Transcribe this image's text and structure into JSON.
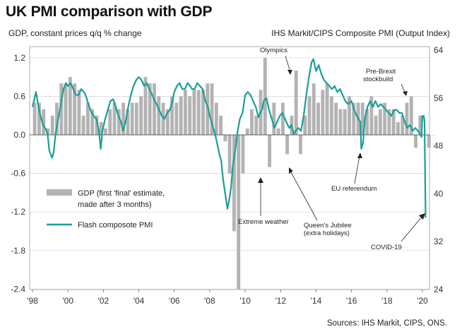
{
  "chart_data": {
    "type": "bar+line",
    "title": "UK PMI comparison with GDP",
    "ylabel_left": "GDP, constant prices q/q % change",
    "ylabel_right": "IHS Markit/CIPS Composite PMI (Output Index)",
    "source": "Sources: IHS Markit, CIPS, ONS.",
    "x_range": [
      1998,
      2020.4
    ],
    "x_ticks": [
      1998,
      2000,
      2002,
      2004,
      2006,
      2008,
      2010,
      2012,
      2014,
      2016,
      2018,
      2020
    ],
    "x_tick_labels": [
      "'98",
      "'00",
      "'02",
      "'04",
      "'06",
      "'08",
      "'10",
      "'12",
      "'14",
      "'16",
      "'18",
      "'20"
    ],
    "ylim_left": [
      -2.4,
      1.5
    ],
    "yticks_left": [
      -2.4,
      -1.8,
      -1.2,
      -0.6,
      0.0,
      0.6,
      1.2
    ],
    "ytick_labels_left": [
      "-2.4",
      "-1.8",
      "-1.2",
      "-0.6",
      "0.0",
      "0.6",
      "1.2"
    ],
    "ylim_right": [
      24,
      66
    ],
    "yticks_right": [
      24,
      32,
      40,
      48,
      56,
      64
    ],
    "ytick_labels_right": [
      "24",
      "32",
      "40",
      "48",
      "56",
      "64"
    ],
    "gdp_bar_color": "#b3b3b3",
    "pmi_line_color": "#1a9e96",
    "legend": {
      "gdp_label_line1": "GDP (first 'final' estimate,",
      "gdp_label_line2": "made after 3 months)",
      "pmi_label": "Flash composote PMI"
    },
    "gdp_series": {
      "name": "GDP (first 'final' estimate, made after 3 months)",
      "start": 1998.0,
      "step": 0.25,
      "values": [
        0.5,
        0.5,
        0.4,
        0.1,
        0.3,
        0.5,
        0.8,
        0.8,
        0.9,
        0.8,
        0.7,
        0.3,
        0.5,
        0.4,
        0.3,
        0.2,
        0.1,
        0.4,
        0.5,
        0.4,
        0.5,
        0.4,
        0.5,
        0.5,
        0.6,
        0.9,
        0.8,
        0.8,
        0.6,
        0.5,
        0.4,
        0.6,
        0.5,
        0.6,
        0.7,
        0.6,
        0.7,
        0.7,
        0.7,
        0.8,
        0.8,
        0.5,
        0.3,
        -0.1,
        -0.6,
        -1.5,
        -2.4,
        -0.6,
        0.1,
        0.4,
        0.3,
        0.7,
        1.2,
        -0.5,
        0.5,
        0.1,
        0.5,
        -0.3,
        0.3,
        1.0,
        -0.3,
        0.3,
        0.6,
        0.8,
        0.5,
        0.7,
        0.8,
        0.6,
        0.5,
        0.4,
        0.4,
        0.6,
        0.5,
        0.5,
        0.5,
        0.4,
        0.6,
        0.3,
        0.4,
        0.5,
        0.4,
        0.4,
        0.2,
        0.3,
        0.5,
        0.6,
        -0.2,
        0.3,
        0.0,
        -0.2,
        0.0
      ]
    },
    "pmi_series": {
      "name": "Flash composote PMI",
      "points": [
        [
          1998.0,
          54.5
        ],
        [
          1998.1,
          55.8
        ],
        [
          1998.2,
          57.0
        ],
        [
          1998.3,
          55.2
        ],
        [
          1998.45,
          53.0
        ],
        [
          1998.6,
          51.5
        ],
        [
          1998.75,
          50.8
        ],
        [
          1998.85,
          50.0
        ],
        [
          1998.95,
          47.2
        ],
        [
          1999.1,
          46.0
        ],
        [
          1999.2,
          47.0
        ],
        [
          1999.3,
          50.0
        ],
        [
          1999.45,
          52.5
        ],
        [
          1999.6,
          55.0
        ],
        [
          1999.75,
          57.5
        ],
        [
          1999.9,
          58.5
        ],
        [
          2000.0,
          58.0
        ],
        [
          2000.15,
          58.5
        ],
        [
          2000.3,
          57.5
        ],
        [
          2000.45,
          56.5
        ],
        [
          2000.6,
          56.5
        ],
        [
          2000.75,
          57.5
        ],
        [
          2000.9,
          57.0
        ],
        [
          2001.0,
          56.5
        ],
        [
          2001.15,
          55.0
        ],
        [
          2001.3,
          53.8
        ],
        [
          2001.45,
          53.0
        ],
        [
          2001.6,
          52.5
        ],
        [
          2001.75,
          50.5
        ],
        [
          2001.85,
          47.5
        ],
        [
          2001.95,
          50.5
        ],
        [
          2002.1,
          52.5
        ],
        [
          2002.25,
          54.0
        ],
        [
          2002.4,
          55.5
        ],
        [
          2002.55,
          55.8
        ],
        [
          2002.7,
          54.5
        ],
        [
          2002.85,
          53.0
        ],
        [
          2003.0,
          52.0
        ],
        [
          2003.1,
          50.5
        ],
        [
          2003.25,
          52.0
        ],
        [
          2003.4,
          54.5
        ],
        [
          2003.55,
          56.5
        ],
        [
          2003.7,
          58.0
        ],
        [
          2003.85,
          59.0
        ],
        [
          2004.0,
          59.5
        ],
        [
          2004.15,
          59.0
        ],
        [
          2004.3,
          58.0
        ],
        [
          2004.45,
          58.5
        ],
        [
          2004.6,
          57.5
        ],
        [
          2004.75,
          56.5
        ],
        [
          2004.9,
          55.5
        ],
        [
          2005.0,
          55.0
        ],
        [
          2005.15,
          54.0
        ],
        [
          2005.3,
          53.0
        ],
        [
          2005.45,
          52.5
        ],
        [
          2005.6,
          53.5
        ],
        [
          2005.75,
          54.0
        ],
        [
          2005.9,
          55.5
        ],
        [
          2006.0,
          57.0
        ],
        [
          2006.15,
          58.0
        ],
        [
          2006.3,
          58.5
        ],
        [
          2006.45,
          57.5
        ],
        [
          2006.6,
          57.5
        ],
        [
          2006.75,
          58.5
        ],
        [
          2006.9,
          58.0
        ],
        [
          2007.0,
          57.5
        ],
        [
          2007.15,
          57.5
        ],
        [
          2007.3,
          58.5
        ],
        [
          2007.45,
          58.0
        ],
        [
          2007.6,
          57.5
        ],
        [
          2007.75,
          55.5
        ],
        [
          2007.9,
          54.5
        ],
        [
          2008.0,
          53.0
        ],
        [
          2008.15,
          51.5
        ],
        [
          2008.3,
          50.0
        ],
        [
          2008.45,
          48.0
        ],
        [
          2008.55,
          46.5
        ],
        [
          2008.65,
          45.5
        ],
        [
          2008.75,
          42.5
        ],
        [
          2008.85,
          40.5
        ],
        [
          2008.95,
          38.5
        ],
        [
          2009.0,
          37.5
        ],
        [
          2009.1,
          39.0
        ],
        [
          2009.2,
          41.0
        ],
        [
          2009.3,
          44.5
        ],
        [
          2009.45,
          47.5
        ],
        [
          2009.55,
          50.0
        ],
        [
          2009.7,
          52.5
        ],
        [
          2009.85,
          53.5
        ],
        [
          2010.0,
          56.5
        ],
        [
          2010.15,
          57.0
        ],
        [
          2010.3,
          56.5
        ],
        [
          2010.45,
          55.5
        ],
        [
          2010.6,
          54.5
        ],
        [
          2010.75,
          52.8
        ],
        [
          2010.85,
          53.5
        ],
        [
          2010.95,
          54.0
        ],
        [
          2011.05,
          55.5
        ],
        [
          2011.2,
          56.0
        ],
        [
          2011.35,
          54.0
        ],
        [
          2011.5,
          52.5
        ],
        [
          2011.65,
          51.0
        ],
        [
          2011.8,
          52.0
        ],
        [
          2011.95,
          53.0
        ],
        [
          2012.1,
          53.5
        ],
        [
          2012.25,
          52.5
        ],
        [
          2012.4,
          51.5
        ],
        [
          2012.5,
          51.0
        ],
        [
          2012.6,
          51.5
        ],
        [
          2012.75,
          50.0
        ],
        [
          2012.85,
          50.5
        ],
        [
          2013.0,
          51.0
        ],
        [
          2013.15,
          50.5
        ],
        [
          2013.3,
          53.0
        ],
        [
          2013.45,
          56.5
        ],
        [
          2013.6,
          59.5
        ],
        [
          2013.75,
          62.0
        ],
        [
          2013.85,
          62.5
        ],
        [
          2014.0,
          60.5
        ],
        [
          2014.15,
          61.5
        ],
        [
          2014.3,
          60.0
        ],
        [
          2014.45,
          59.0
        ],
        [
          2014.6,
          58.5
        ],
        [
          2014.75,
          58.0
        ],
        [
          2014.9,
          57.5
        ],
        [
          2015.05,
          58.0
        ],
        [
          2015.2,
          57.0
        ],
        [
          2015.35,
          57.5
        ],
        [
          2015.5,
          56.5
        ],
        [
          2015.65,
          55.5
        ],
        [
          2015.8,
          55.0
        ],
        [
          2016.0,
          55.5
        ],
        [
          2016.15,
          54.0
        ],
        [
          2016.3,
          53.0
        ],
        [
          2016.4,
          52.5
        ],
        [
          2016.5,
          52.0
        ],
        [
          2016.55,
          47.5
        ],
        [
          2016.65,
          48.5
        ],
        [
          2016.75,
          52.5
        ],
        [
          2016.9,
          54.5
        ],
        [
          2017.05,
          55.5
        ],
        [
          2017.2,
          54.5
        ],
        [
          2017.35,
          55.5
        ],
        [
          2017.5,
          54.5
        ],
        [
          2017.65,
          55.0
        ],
        [
          2017.8,
          54.5
        ],
        [
          2017.95,
          54.0
        ],
        [
          2018.1,
          53.5
        ],
        [
          2018.25,
          53.0
        ],
        [
          2018.4,
          54.0
        ],
        [
          2018.55,
          54.0
        ],
        [
          2018.7,
          53.5
        ],
        [
          2018.85,
          53.5
        ],
        [
          2019.0,
          52.0
        ],
        [
          2019.15,
          51.0
        ],
        [
          2019.3,
          51.5
        ],
        [
          2019.45,
          50.5
        ],
        [
          2019.6,
          51.0
        ],
        [
          2019.75,
          50.5
        ],
        [
          2019.85,
          50.0
        ],
        [
          2019.95,
          49.5
        ],
        [
          2020.0,
          53.0
        ],
        [
          2020.08,
          53.0
        ],
        [
          2020.12,
          52.0
        ],
        [
          2020.18,
          36.0
        ]
      ]
    },
    "annotations": [
      {
        "text": "Olympics"
      },
      {
        "text": "Pre-Brexit",
        "text2": "stockbuild"
      },
      {
        "text": "EU referendum"
      },
      {
        "text": "Extreme weather"
      },
      {
        "text": "Queen's Jubilee",
        "text2": "(extra holidays)"
      },
      {
        "text": "COVID-19"
      }
    ]
  }
}
